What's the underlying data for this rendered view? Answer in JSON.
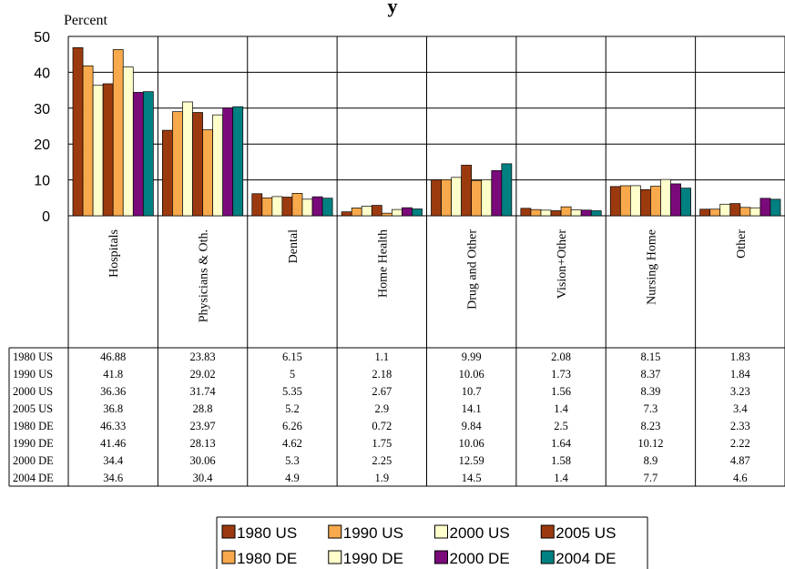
{
  "chart_data": {
    "type": "bar",
    "title": "y",
    "ylabel": "Percent",
    "ylim": [
      0,
      50
    ],
    "yticks": [
      0,
      10,
      20,
      30,
      40,
      50
    ],
    "grid": true,
    "legend_position": "bottom",
    "categories": [
      "Hospitals",
      "Physicians & Oth.",
      "Dental",
      "Home Health",
      "Drug and Other",
      "Vision+Other",
      "Nursing Home",
      "Other"
    ],
    "series": [
      {
        "name": "1980 US",
        "color": "#9c3a0f",
        "values": [
          46.88,
          23.83,
          6.15,
          1.1,
          9.99,
          2.08,
          8.15,
          1.83
        ]
      },
      {
        "name": "1990 US",
        "color": "#f7a94c",
        "values": [
          41.8,
          29.02,
          5,
          2.18,
          10.06,
          1.73,
          8.37,
          1.84
        ]
      },
      {
        "name": "2000 US",
        "color": "#ffffcc",
        "values": [
          36.36,
          31.74,
          5.35,
          2.67,
          10.7,
          1.56,
          8.39,
          3.23
        ]
      },
      {
        "name": "2005 US",
        "color": "#9c3a0f",
        "values": [
          36.8,
          28.8,
          5.2,
          2.9,
          14.1,
          1.4,
          7.3,
          3.4
        ]
      },
      {
        "name": "1980 DE",
        "color": "#f7a94c",
        "values": [
          46.33,
          23.97,
          6.26,
          0.72,
          9.84,
          2.5,
          8.23,
          2.33
        ]
      },
      {
        "name": "1990 DE",
        "color": "#ffffcc",
        "values": [
          41.46,
          28.13,
          4.62,
          1.75,
          10.06,
          1.64,
          10.12,
          2.22
        ]
      },
      {
        "name": "2000 DE",
        "color": "#7a0a7a",
        "values": [
          34.4,
          30.06,
          5.3,
          2.25,
          12.59,
          1.58,
          8.9,
          4.87
        ]
      },
      {
        "name": "2004 DE",
        "color": "#008080",
        "values": [
          34.6,
          30.4,
          4.9,
          1.9,
          14.5,
          1.4,
          7.7,
          4.6
        ]
      }
    ],
    "table_rows": [
      {
        "label": "1980 US",
        "cells": [
          "46.88",
          "23.83",
          "6.15",
          "1.1",
          "9.99",
          "2.08",
          "8.15",
          "1.83"
        ]
      },
      {
        "label": "1990 US",
        "cells": [
          "41.8",
          "29.02",
          "5",
          "2.18",
          "10.06",
          "1.73",
          "8.37",
          "1.84"
        ]
      },
      {
        "label": "2000 US",
        "cells": [
          "36.36",
          "31.74",
          "5.35",
          "2.67",
          "10.7",
          "1.56",
          "8.39",
          "3.23"
        ]
      },
      {
        "label": "2005 US",
        "cells": [
          "36.8",
          "28.8",
          "5.2",
          "2.9",
          "14.1",
          "1.4",
          "7.3",
          "3.4"
        ]
      },
      {
        "label": "1980 DE",
        "cells": [
          "46.33",
          "23.97",
          "6.26",
          "0.72",
          "9.84",
          "2.5",
          "8.23",
          "2.33"
        ]
      },
      {
        "label": "1990 DE",
        "cells": [
          "41.46",
          "28.13",
          "4.62",
          "1.75",
          "10.06",
          "1.64",
          "10.12",
          "2.22"
        ]
      },
      {
        "label": "2000 DE",
        "cells": [
          "34.4",
          "30.06",
          "5.3",
          "2.25",
          "12.59",
          "1.58",
          "8.9",
          "4.87"
        ]
      },
      {
        "label": "2004 DE",
        "cells": [
          "34.6",
          "30.4",
          "4.9",
          "1.9",
          "14.5",
          "1.4",
          "7.7",
          "4.6"
        ]
      }
    ]
  }
}
